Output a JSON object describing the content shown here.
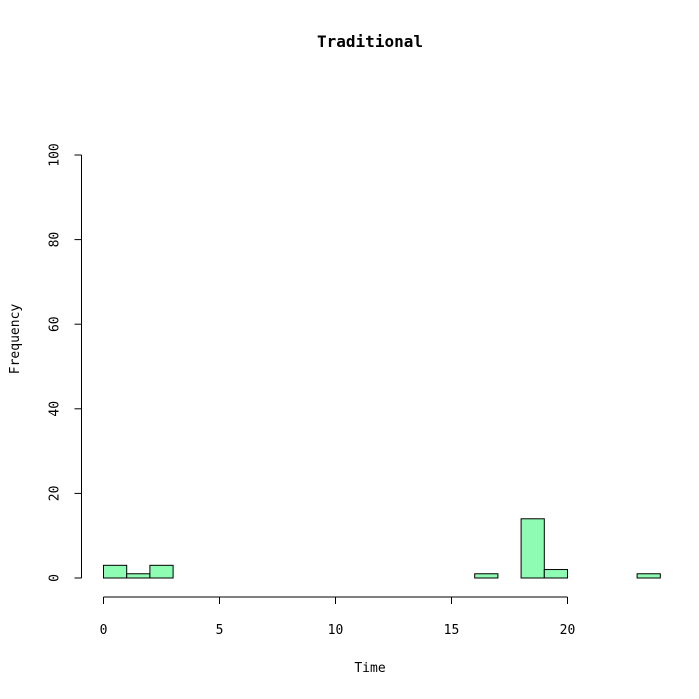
{
  "chart_data": {
    "type": "bar",
    "subtype": "histogram",
    "title": "Traditional",
    "xlabel": "Time",
    "ylabel": "Frequency",
    "xlim": [
      0,
      24
    ],
    "ylim": [
      0,
      100
    ],
    "x_ticks": [
      0,
      5,
      10,
      15,
      20
    ],
    "y_ticks": [
      0,
      20,
      40,
      60,
      80,
      100
    ],
    "bin_width": 1,
    "bin_starts": [
      0,
      1,
      2,
      3,
      4,
      5,
      6,
      7,
      8,
      9,
      10,
      11,
      12,
      13,
      14,
      15,
      16,
      17,
      18,
      19,
      20,
      21,
      22,
      23
    ],
    "values": [
      3,
      1,
      3,
      0,
      0,
      0,
      0,
      0,
      0,
      0,
      0,
      0,
      0,
      0,
      0,
      0,
      1,
      0,
      14,
      2,
      0,
      0,
      0,
      1
    ],
    "bar_color": "#8efcb3",
    "bar_edge_color": "#000000",
    "grid": false
  }
}
